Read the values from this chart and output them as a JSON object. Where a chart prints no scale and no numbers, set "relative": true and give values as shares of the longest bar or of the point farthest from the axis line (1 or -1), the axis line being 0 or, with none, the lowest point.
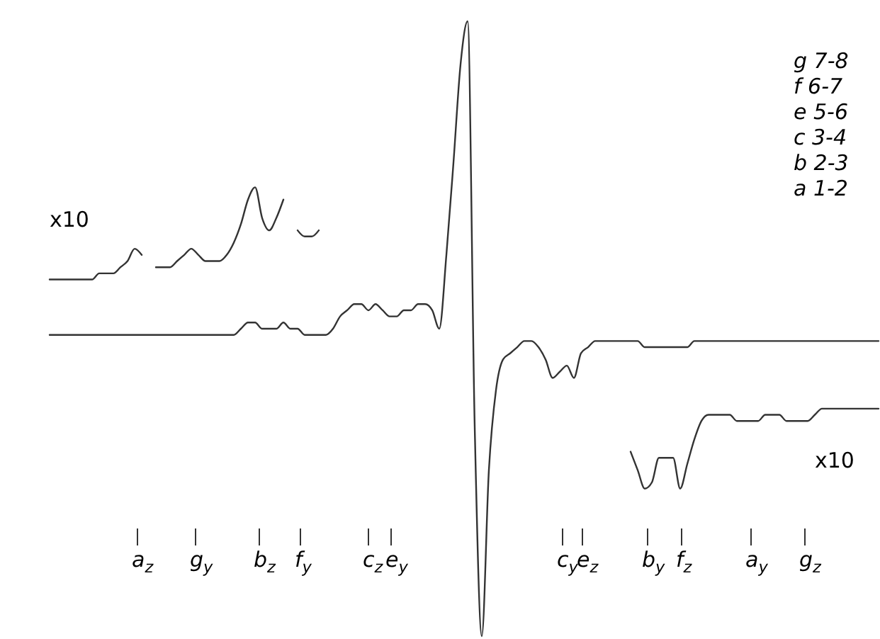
{
  "chart_data": {
    "type": "line",
    "relative": true,
    "categories": [
      null,
      null,
      null,
      null,
      null,
      null,
      null,
      null,
      null,
      null,
      null,
      null,
      null,
      null,
      null,
      null,
      null,
      null,
      null,
      null,
      null,
      null,
      null,
      null,
      null,
      null,
      null,
      null,
      null,
      null,
      null,
      null,
      null,
      null,
      null,
      null,
      null,
      null,
      null,
      null,
      null,
      null,
      null,
      null,
      null,
      null,
      null,
      null,
      null,
      null,
      null,
      null,
      null,
      null,
      null,
      null,
      null,
      null,
      null,
      null,
      null,
      null,
      null,
      null,
      null,
      null,
      null,
      null,
      null,
      null,
      null,
      null,
      null,
      null,
      null,
      null,
      null,
      null,
      null,
      null,
      null,
      null,
      null,
      null,
      null,
      null,
      null,
      null,
      null,
      null,
      null,
      null,
      null,
      null,
      null,
      null,
      null,
      null,
      null,
      null,
      null,
      null,
      null,
      null,
      null,
      null,
      null,
      null,
      null,
      null,
      null,
      null,
      null,
      null,
      null,
      null,
      null,
      null
    ],
    "series": [
      {
        "color": "#333333",
        "values": [
          0.49,
          0.49,
          0.49,
          0.49,
          0.49,
          0.49,
          0.49,
          0.49,
          0.49,
          0.49,
          0.49,
          0.49,
          0.49,
          0.49,
          0.49,
          0.49,
          0.49,
          0.49,
          0.49,
          0.49,
          0.49,
          0.49,
          0.49,
          0.49,
          0.49,
          0.49,
          0.49,
          0.5,
          0.51,
          0.51,
          0.5,
          0.5,
          0.5,
          0.51,
          0.5,
          0.5,
          0.49,
          0.49,
          0.49,
          0.49,
          0.5,
          0.52,
          0.53,
          0.54,
          0.54,
          0.53,
          0.54,
          0.53,
          0.52,
          0.52,
          0.53,
          0.53,
          0.54,
          0.54,
          0.53,
          0.5,
          0.62,
          0.77,
          0.93,
          1.0,
          0.34,
          0.0,
          0.27,
          0.4,
          0.45,
          0.46,
          0.47,
          0.48,
          0.48,
          0.47,
          0.45,
          0.42,
          0.43,
          0.44,
          0.42,
          0.46,
          0.47,
          0.48,
          0.48,
          0.48,
          0.48,
          0.48,
          0.48,
          0.48,
          0.47,
          0.47,
          0.47,
          0.47,
          0.47,
          0.47,
          0.47,
          0.48,
          0.48,
          0.48,
          0.48,
          0.48,
          0.48,
          0.48,
          0.48,
          0.48,
          0.48,
          0.48,
          0.48,
          0.48,
          0.48,
          0.48,
          0.48,
          0.48,
          0.48,
          0.48,
          0.48,
          0.48,
          0.48,
          0.48,
          0.48,
          0.48,
          0.48,
          0.48
        ]
      },
      {
        "color": "#333333",
        "values": [
          0.58,
          0.58,
          0.58,
          0.58,
          0.58,
          0.58,
          0.58,
          0.59,
          0.59,
          0.59,
          0.6,
          0.61,
          0.63,
          0.62,
          null,
          0.6,
          0.6,
          0.6,
          0.61,
          0.62,
          0.63,
          0.62,
          0.61,
          0.61,
          0.61,
          0.62,
          0.64,
          0.67,
          0.71,
          0.73,
          0.68,
          0.66,
          0.68,
          0.71,
          null,
          0.66,
          0.65,
          0.65,
          0.66,
          null,
          null,
          null,
          null,
          null,
          null,
          null,
          null,
          null,
          null,
          null,
          null,
          null,
          null,
          null,
          null,
          null,
          null,
          null,
          null,
          null,
          null,
          null,
          null,
          null,
          null,
          null,
          null,
          null,
          null,
          null,
          null,
          null,
          null,
          null,
          null,
          null,
          null,
          null,
          null,
          null,
          null,
          null,
          null,
          null,
          null,
          null,
          null,
          null,
          null,
          null,
          null,
          null,
          null,
          null,
          null,
          null,
          null,
          null,
          null,
          null,
          null,
          null,
          null,
          null,
          null,
          null,
          null,
          null,
          null,
          null,
          null,
          null,
          null,
          null,
          null,
          null,
          null,
          null
        ]
      },
      {
        "color": "#333333",
        "values": [
          null,
          null,
          null,
          null,
          null,
          null,
          null,
          null,
          null,
          null,
          null,
          null,
          null,
          null,
          null,
          null,
          null,
          null,
          null,
          null,
          null,
          null,
          null,
          null,
          null,
          null,
          null,
          null,
          null,
          null,
          null,
          null,
          null,
          null,
          null,
          null,
          null,
          null,
          null,
          null,
          null,
          null,
          null,
          null,
          null,
          null,
          null,
          null,
          null,
          null,
          null,
          null,
          null,
          null,
          null,
          null,
          null,
          null,
          null,
          null,
          null,
          null,
          null,
          null,
          null,
          null,
          null,
          null,
          null,
          null,
          null,
          null,
          null,
          null,
          null,
          null,
          null,
          null,
          null,
          null,
          null,
          null,
          0.3,
          0.27,
          0.24,
          0.25,
          0.29,
          0.29,
          0.29,
          0.24,
          0.28,
          0.32,
          0.35,
          0.36,
          0.36,
          0.36,
          0.36,
          0.35,
          0.35,
          0.35,
          0.35,
          0.36,
          0.36,
          0.36,
          0.35,
          0.35,
          0.35,
          0.35,
          0.36,
          0.37,
          0.37,
          0.37,
          0.37,
          0.37,
          0.37,
          0.37,
          0.37,
          0.37
        ]
      }
    ],
    "annotations": [
      "x10",
      "x10",
      "g 7-8",
      "f 6-7",
      "e 5-6",
      "c 3-4",
      "b 2-3",
      "a 1-2",
      "a$_{z}$",
      "g$_{y}$",
      "b$_{z}$",
      "f$_{y}$",
      "c$_{z}$",
      "e$_{y}$",
      "c$_{y}$",
      "e$_{z}$",
      "b$_{y}$",
      "f$_{z}$",
      "a$_{y}$",
      "g$_{z}$"
    ]
  }
}
